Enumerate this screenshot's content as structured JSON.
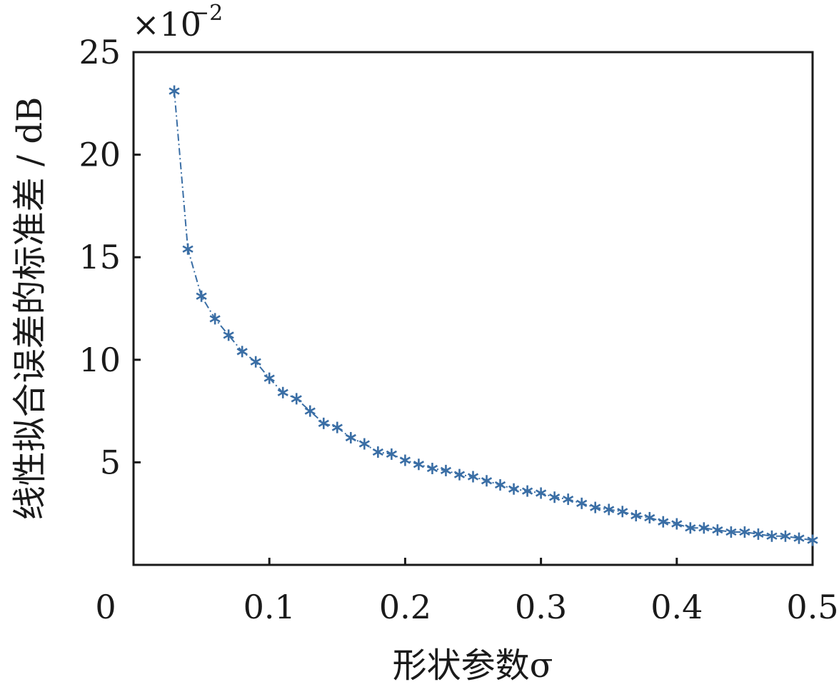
{
  "chart_data": {
    "type": "line",
    "xlabel": "形状参数σ",
    "ylabel": "线性拟合误差的标准差 / dB",
    "y_multiplier_label": "×10",
    "y_multiplier_exponent": "−2",
    "xlim": [
      0,
      0.5
    ],
    "ylim": [
      0,
      25
    ],
    "x_ticks": [
      "0",
      "0.1",
      "0.2",
      "0.3",
      "0.4",
      "0.5"
    ],
    "y_ticks": [
      "5",
      "10",
      "15",
      "20",
      "25"
    ],
    "grid": false,
    "series": [
      {
        "color": "#3a6ea5",
        "line_style": "dash-dot",
        "marker": "asterisk",
        "x": [
          0.03,
          0.04,
          0.05,
          0.06,
          0.07,
          0.08,
          0.09,
          0.1,
          0.11,
          0.12,
          0.13,
          0.14,
          0.15,
          0.16,
          0.17,
          0.18,
          0.19,
          0.2,
          0.21,
          0.22,
          0.23,
          0.24,
          0.25,
          0.26,
          0.27,
          0.28,
          0.29,
          0.3,
          0.31,
          0.32,
          0.33,
          0.34,
          0.35,
          0.36,
          0.37,
          0.38,
          0.39,
          0.4,
          0.41,
          0.42,
          0.43,
          0.44,
          0.45,
          0.46,
          0.47,
          0.48,
          0.49,
          0.5
        ],
        "y": [
          23.1,
          15.4,
          13.1,
          12.0,
          11.2,
          10.4,
          9.9,
          9.1,
          8.4,
          8.1,
          7.5,
          6.9,
          6.7,
          6.2,
          5.9,
          5.5,
          5.4,
          5.1,
          4.9,
          4.7,
          4.6,
          4.4,
          4.3,
          4.1,
          3.9,
          3.7,
          3.6,
          3.5,
          3.3,
          3.2,
          3.0,
          2.8,
          2.7,
          2.6,
          2.4,
          2.3,
          2.1,
          2.0,
          1.8,
          1.8,
          1.7,
          1.6,
          1.6,
          1.5,
          1.4,
          1.4,
          1.3,
          1.2
        ]
      }
    ]
  }
}
